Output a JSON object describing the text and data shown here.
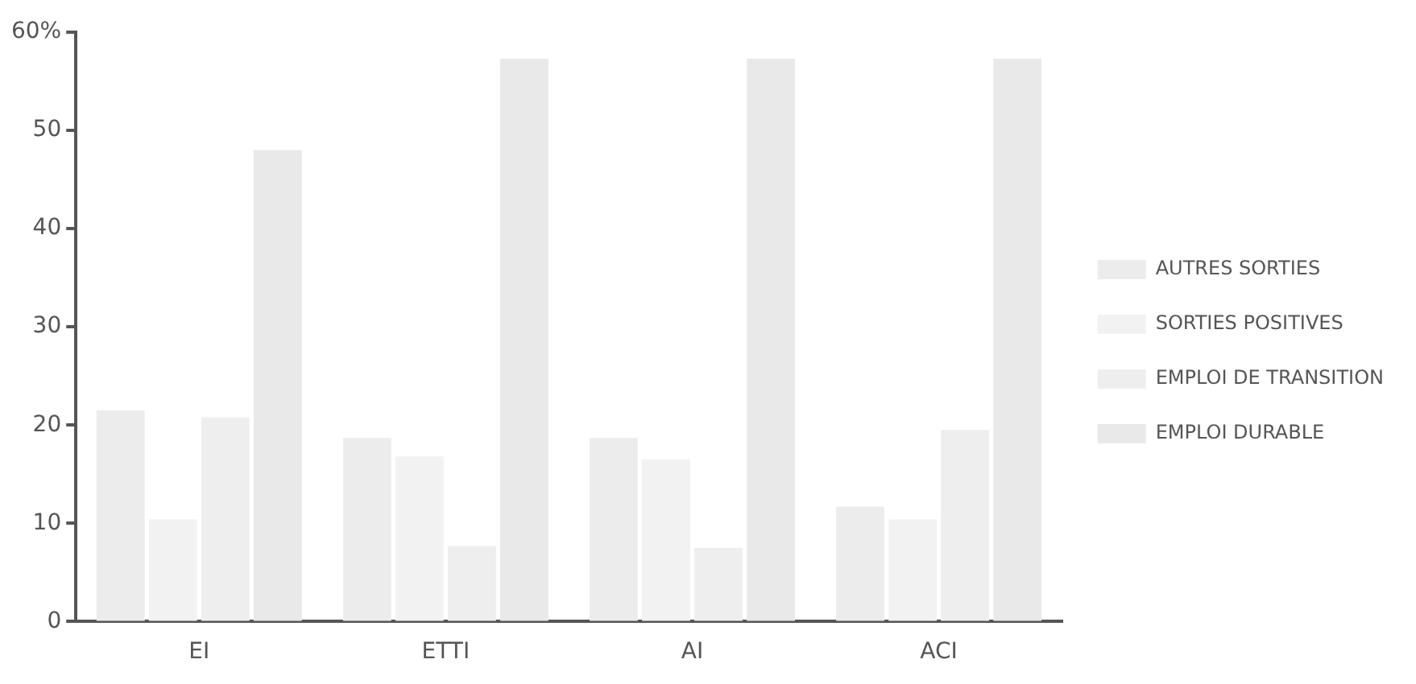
{
  "chart_data": {
    "type": "bar",
    "categories": [
      "EI",
      "ETTI",
      "AI",
      "ACI"
    ],
    "series": [
      {
        "name": "AUTRES SORTIES",
        "color": "#ececec",
        "values": [
          21.5,
          18.7,
          18.7,
          11.7
        ]
      },
      {
        "name": "SORTIES POSITIVES",
        "color": "#f2f2f2",
        "values": [
          10.4,
          16.8,
          16.5,
          10.4
        ]
      },
      {
        "name": "EMPLOI DE TRANSITION",
        "color": "#eeeeee",
        "values": [
          20.8,
          7.7,
          7.5,
          19.5
        ]
      },
      {
        "name": "EMPLOI DURABLE",
        "color": "#e9e9e9",
        "values": [
          48,
          57.3,
          57.3,
          57.3
        ]
      }
    ],
    "ylim": [
      0,
      60
    ],
    "yticks": [
      0,
      10,
      20,
      30,
      40,
      50,
      {
        "value": 60,
        "label": "60%"
      }
    ],
    "grid": false,
    "legend": "right"
  }
}
